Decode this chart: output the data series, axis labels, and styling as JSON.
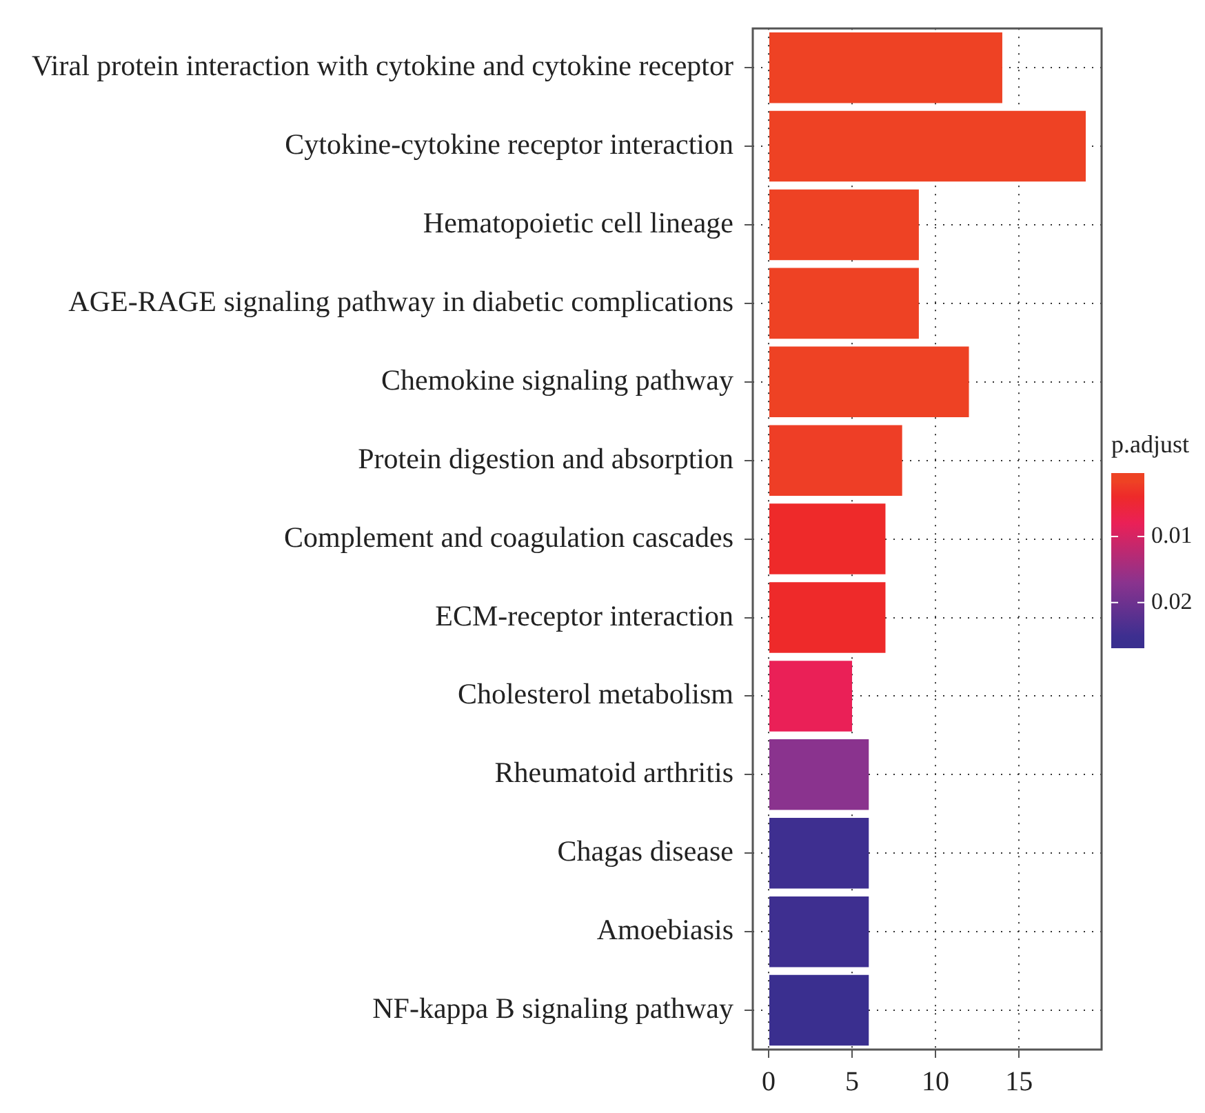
{
  "chart_data": {
    "type": "bar",
    "orientation": "horizontal",
    "clabel": "p.adjust",
    "categories": [
      "Viral protein interaction with cytokine and cytokine receptor",
      "Cytokine-cytokine receptor interaction",
      "Hematopoietic cell lineage",
      "AGE-RAGE signaling pathway in diabetic complications",
      "Chemokine signaling pathway",
      "Protein digestion and absorption",
      "Complement and coagulation cascades",
      "ECM-receptor interaction",
      "Cholesterol metabolism",
      "Rheumatoid arthritis",
      "Chagas disease",
      "Amoebiasis",
      "NF-kappa B signaling pathway"
    ],
    "values": [
      14,
      19,
      9,
      9,
      12,
      8,
      7,
      7,
      5,
      6,
      6,
      6,
      6
    ],
    "cvalues": [
      0.0012,
      0.0008,
      0.0015,
      0.0015,
      0.0018,
      0.002,
      0.004,
      0.004,
      0.008,
      0.017,
      0.025,
      0.025,
      0.026
    ],
    "colors": [
      "#ee4224",
      "#ee4224",
      "#ee4224",
      "#ee4224",
      "#ee4224",
      "#ee3e26",
      "#ee2a2a",
      "#ee2a2a",
      "#ea2057",
      "#8a338e",
      "#3e2f90",
      "#3e2f90",
      "#3a2f8f"
    ],
    "clim": [
      0.0004,
      0.0269
    ],
    "cticks": [
      0.01,
      0.02
    ],
    "xlim": [
      -0.95,
      19.95
    ],
    "xticks": [
      0,
      5,
      10,
      15
    ],
    "grid": true,
    "line_style": "dotted",
    "legend": false
  }
}
